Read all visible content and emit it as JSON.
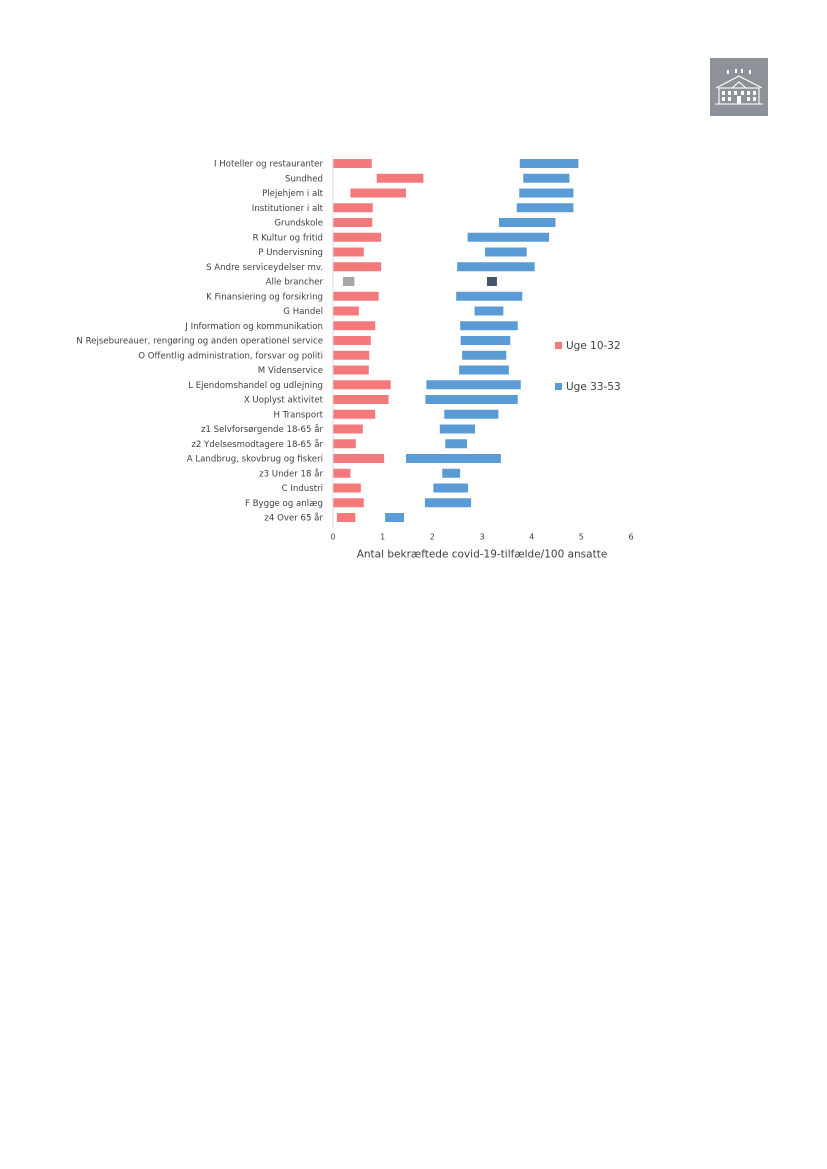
{
  "logo": {
    "icon": "building-icon"
  },
  "colors": {
    "series_1": "#f4797b",
    "series_2": "#5b9bd5",
    "all_series_1": "#a6a6a6",
    "all_series_2": "#44546a"
  },
  "chart_data": {
    "type": "bar",
    "orientation": "horizontal",
    "style": "floating-range",
    "xlabel": "Antal bekræftede covid-19-tilfælde/100 ansatte",
    "xlim": [
      0,
      6
    ],
    "xticks": [
      "0",
      "1",
      "2",
      "3",
      "4",
      "5",
      "6"
    ],
    "grid": false,
    "legend_position": "right",
    "categories": [
      "I Hoteller og restauranter",
      "Sundhed",
      "Plejehjem i alt",
      "Institutioner i alt",
      "Grundskole",
      "R Kultur og fritid",
      "P Undervisning",
      "S Andre serviceydelser  mv.",
      "Alle brancher",
      "K Finansiering og forsikring",
      "G Handel",
      "J Information og kommunikation",
      "N Rejsebureauer, rengøring og anden operationel service",
      "O Offentlig administration, forsvar og politi",
      "M Videnservice",
      "L Ejendomshandel og udlejning",
      "X Uoplyst aktivitet",
      "H Transport",
      "z1 Selvforsørgende 18-65 år",
      "z2 Ydelsesmodtagere 18-65 år",
      "A Landbrug, skovbrug og fiskeri",
      "z3 Under 18 år",
      "C Industri",
      "F Bygge og anlæg",
      "z4 Over 65 år"
    ],
    "series": [
      {
        "name": "Uge 10-32",
        "ranges": [
          [
            0.0,
            0.78
          ],
          [
            0.88,
            1.82
          ],
          [
            0.35,
            1.47
          ],
          [
            0.0,
            0.8
          ],
          [
            0.0,
            0.79
          ],
          [
            0.0,
            0.97
          ],
          [
            0.0,
            0.62
          ],
          [
            0.0,
            0.97
          ],
          [
            0.2,
            0.43
          ],
          [
            0.0,
            0.92
          ],
          [
            0.0,
            0.52
          ],
          [
            0.0,
            0.85
          ],
          [
            0.0,
            0.76
          ],
          [
            0.0,
            0.73
          ],
          [
            0.0,
            0.72
          ],
          [
            0.0,
            1.16
          ],
          [
            0.0,
            1.12
          ],
          [
            0.0,
            0.85
          ],
          [
            0.0,
            0.6
          ],
          [
            0.0,
            0.46
          ],
          [
            0.0,
            1.03
          ],
          [
            0.0,
            0.35
          ],
          [
            0.0,
            0.56
          ],
          [
            0.0,
            0.62
          ],
          [
            0.08,
            0.45
          ]
        ]
      },
      {
        "name": "Uge 33-53",
        "ranges": [
          [
            3.76,
            4.94
          ],
          [
            3.83,
            4.76
          ],
          [
            3.75,
            4.84
          ],
          [
            3.7,
            4.84
          ],
          [
            3.34,
            4.48
          ],
          [
            2.71,
            4.35
          ],
          [
            3.06,
            3.9
          ],
          [
            2.5,
            4.06
          ],
          [
            3.1,
            3.3
          ],
          [
            2.48,
            3.81
          ],
          [
            2.85,
            3.43
          ],
          [
            2.56,
            3.72
          ],
          [
            2.57,
            3.57
          ],
          [
            2.6,
            3.49
          ],
          [
            2.54,
            3.54
          ],
          [
            1.88,
            3.78
          ],
          [
            1.86,
            3.72
          ],
          [
            2.24,
            3.33
          ],
          [
            2.15,
            2.86
          ],
          [
            2.26,
            2.7
          ],
          [
            1.47,
            3.38
          ],
          [
            2.2,
            2.56
          ],
          [
            2.02,
            2.72
          ],
          [
            1.85,
            2.78
          ],
          [
            1.05,
            1.43
          ]
        ]
      }
    ]
  }
}
